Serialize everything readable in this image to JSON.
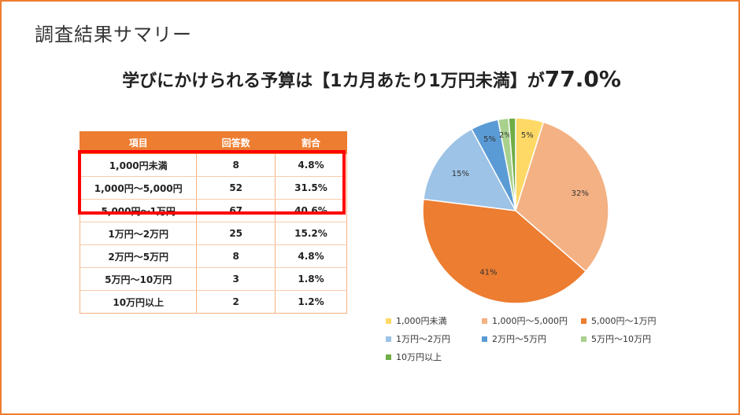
{
  "slide": {
    "title": "調査結果サマリー",
    "headline_text": "学びにかけられる予算は【1カ月あたり1万円未満】が",
    "headline_value": "77.0%"
  },
  "table": {
    "headers": [
      "項目",
      "回答数",
      "割合"
    ],
    "rows": [
      {
        "item": "1,000円未満",
        "count": "8",
        "ratio": "4.8%"
      },
      {
        "item": "1,000円～5,000円",
        "count": "52",
        "ratio": "31.5%"
      },
      {
        "item": "5,000円～1万円",
        "count": "67",
        "ratio": "40.6%"
      },
      {
        "item": "1万円～2万円",
        "count": "25",
        "ratio": "15.2%"
      },
      {
        "item": "2万円～5万円",
        "count": "8",
        "ratio": "4.8%"
      },
      {
        "item": "5万円～10万円",
        "count": "3",
        "ratio": "1.8%"
      },
      {
        "item": "10万円以上",
        "count": "2",
        "ratio": "1.2%"
      }
    ]
  },
  "chart_data": {
    "type": "pie",
    "categories": [
      "1,000円未満",
      "1,000円～5,000円",
      "5,000円～1万円",
      "1万円～2万円",
      "2万円～5万円",
      "5万円～10万円",
      "10万円以上"
    ],
    "values": [
      8,
      52,
      67,
      25,
      8,
      3,
      2
    ],
    "data_labels": [
      "5%",
      "32%",
      "41%",
      "15%",
      "5%",
      "2%",
      ""
    ],
    "colors": [
      "#FFD966",
      "#F4B183",
      "#ED7D31",
      "#9DC3E6",
      "#5B9BD5",
      "#A9D18E",
      "#70AD47"
    ],
    "legend_position": "bottom"
  }
}
